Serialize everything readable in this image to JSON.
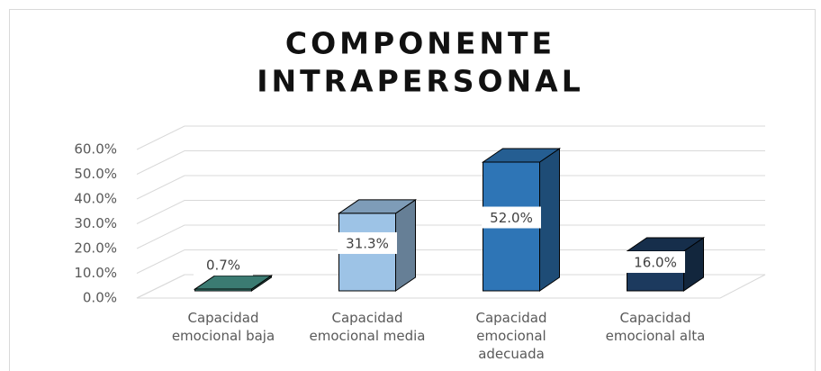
{
  "chart_data": {
    "type": "bar3d",
    "title_lines": [
      "COMPONENTE",
      "INTRAPERSONAL"
    ],
    "categories": [
      "Capacidad emocional baja",
      "Capacidad emocional media",
      "Capacidad emocional adecuada",
      "Capacidad emocional alta"
    ],
    "values": [
      0.7,
      31.3,
      52.0,
      16.0
    ],
    "value_labels": [
      "0.7%",
      "31.3%",
      "52.0%",
      "16.0%"
    ],
    "colors": [
      "#4a9a8f",
      "#9dc3e6",
      "#2e75b6",
      "#1c3a5e"
    ],
    "ylim": [
      0,
      60
    ],
    "yticks": [
      {
        "value": 0,
        "label": "0.0%"
      },
      {
        "value": 10,
        "label": "10.0%"
      },
      {
        "value": 20,
        "label": "20.0%"
      },
      {
        "value": 30,
        "label": "30.0%"
      },
      {
        "value": 40,
        "label": "40.0%"
      },
      {
        "value": 50,
        "label": "50.0%"
      },
      {
        "value": 60,
        "label": "60.0%"
      }
    ],
    "grid": true
  }
}
